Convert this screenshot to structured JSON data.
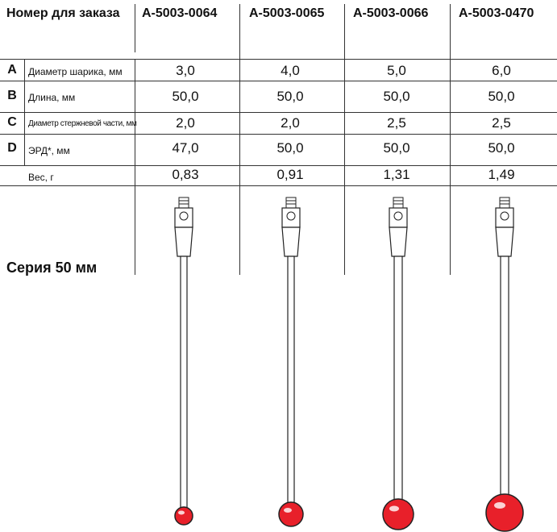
{
  "header": {
    "order_label": "Номер для заказа",
    "codes": [
      "A-5003-0064",
      "A-5003-0065",
      "A-5003-0066",
      "A-5003-0470"
    ]
  },
  "rows": [
    {
      "letter": "A",
      "label": "Диаметр шарика, мм",
      "values": [
        "3,0",
        "4,0",
        "5,0",
        "6,0"
      ]
    },
    {
      "letter": "B",
      "label": "Длина, мм",
      "values": [
        "50,0",
        "50,0",
        "50,0",
        "50,0"
      ]
    },
    {
      "letter": "C",
      "label": "Диаметр стержневой части, мм",
      "values": [
        "2,0",
        "2,0",
        "2,5",
        "2,5"
      ]
    },
    {
      "letter": "D",
      "label": "ЭРД*, мм",
      "values": [
        "47,0",
        "50,0",
        "50,0",
        "50,0"
      ]
    },
    {
      "letter": "",
      "label": "Вес, г",
      "values": [
        "0,83",
        "0,91",
        "1,31",
        "1,49"
      ]
    }
  ],
  "series_label": "Серия 50 мм",
  "colors": {
    "ball": "#e8202a",
    "line": "#333333"
  }
}
